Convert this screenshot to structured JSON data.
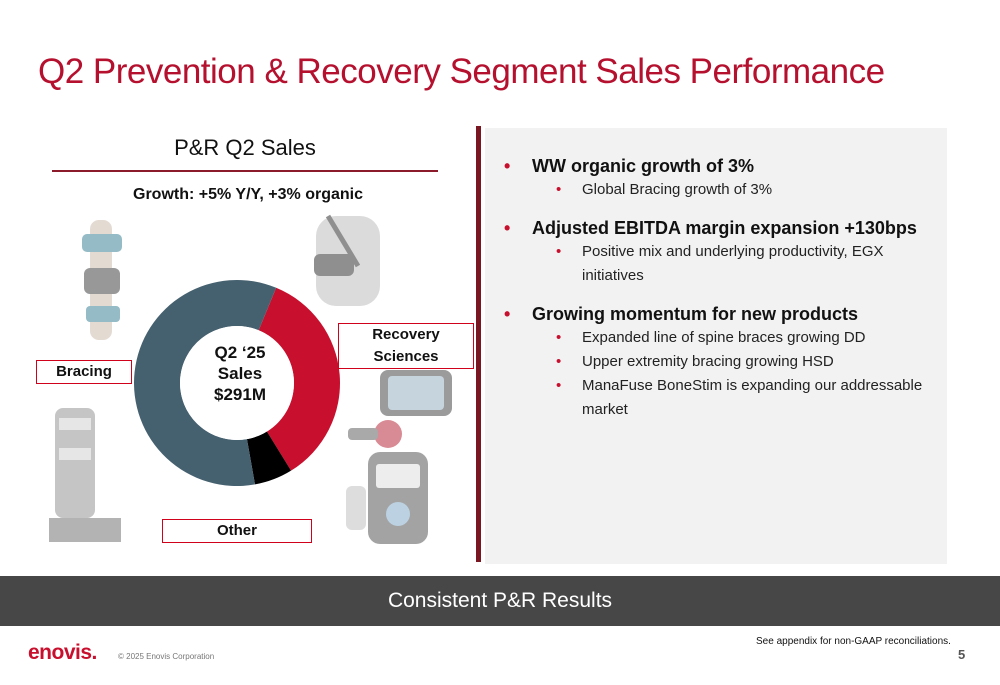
{
  "title": "Q2 Prevention & Recovery Segment Sales Performance",
  "chart": {
    "heading": "P&R Q2 Sales",
    "growth": "Growth: +5% Y/Y, +3% organic",
    "center_lines": [
      "Q2 ‘2 5",
      "Sales",
      "$291M"
    ]
  },
  "chart_data": {
    "type": "pie",
    "title": "P&R Q2 Sales",
    "subtitle": "Growth: +5% Y/Y, +3% organic",
    "categories": [
      "Bracing",
      "Recovery Sciences",
      "Other"
    ],
    "values": [
      59,
      35,
      6
    ],
    "colors": [
      "#45606f",
      "#c8102e",
      "#000000"
    ],
    "center_text": "Q2 ‘25 Sales $291M"
  },
  "bullets": [
    {
      "text": "WW organic growth of 3%",
      "sub": [
        "Global Bracing growth of 3%"
      ]
    },
    {
      "text": "Adjusted EBITDA margin expansion +130bps",
      "sub": [
        "Positive mix and underlying productivity, EGX initiatives"
      ]
    },
    {
      "text": "Growing momentum for new products",
      "sub": [
        "Expanded line of spine braces growing DD",
        "Upper extremity bracing growing HSD",
        "ManaFuse BoneStim is expanding our addressable market"
      ]
    }
  ],
  "banner": "Consistent P&R Results",
  "footer": {
    "logo": "enovis.",
    "copyright": "© 2025 Enovis Corporation",
    "footnote": "See appendix for non-GAAP reconciliations.",
    "page": "5"
  },
  "icons": [
    "knee-brace-photo",
    "shoulder-brace-photo",
    "walker-boot-photo",
    "stim-device-photo",
    "electrotherapy-unit-photo"
  ]
}
